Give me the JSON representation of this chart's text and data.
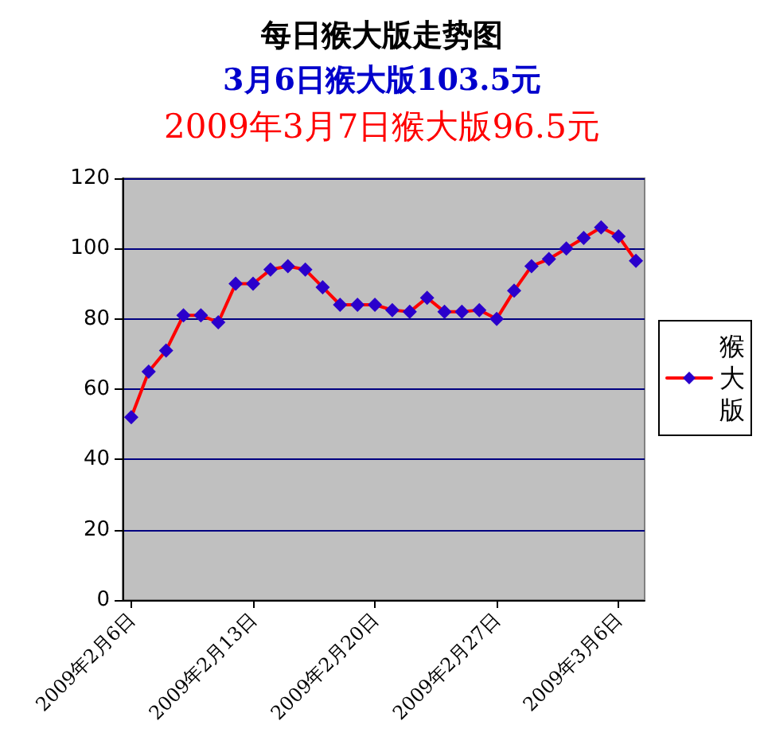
{
  "chart_data": {
    "type": "line",
    "title": "每日猴大版走势图",
    "subtitle": "3月6日猴大版103.5元",
    "annotations": [
      "2009年3月7日猴大版96.5元"
    ],
    "categories": [
      "2009年2月6日",
      null,
      null,
      null,
      null,
      null,
      null,
      "2009年2月13日",
      null,
      null,
      null,
      null,
      null,
      null,
      "2009年2月20日",
      null,
      null,
      null,
      null,
      null,
      null,
      "2009年2月27日",
      null,
      null,
      null,
      null,
      null,
      null,
      "2009年3月6日",
      null
    ],
    "series": [
      {
        "name": "猴大版",
        "color": "#ff0000",
        "values": [
          52,
          65,
          71,
          81,
          81,
          79,
          90,
          90,
          94,
          95,
          94,
          89,
          84,
          84,
          84,
          82.5,
          82,
          86,
          82,
          82,
          82.5,
          80,
          88,
          95,
          97,
          100,
          103,
          106,
          103.5,
          96.5
        ]
      }
    ],
    "ylim": [
      0,
      120
    ],
    "yticks": [
      0,
      20,
      40,
      60,
      80,
      100,
      120
    ],
    "grid": "y",
    "legend": "right",
    "marker": "diamond",
    "line_style": "solid"
  }
}
